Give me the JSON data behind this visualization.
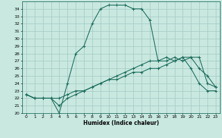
{
  "xlabel": "Humidex (Indice chaleur)",
  "xlim": [
    -0.5,
    23.5
  ],
  "ylim": [
    20,
    35
  ],
  "yticks": [
    20,
    21,
    22,
    23,
    24,
    25,
    26,
    27,
    28,
    29,
    30,
    31,
    32,
    33,
    34
  ],
  "xticks": [
    0,
    1,
    2,
    3,
    4,
    5,
    6,
    7,
    8,
    9,
    10,
    11,
    12,
    13,
    14,
    15,
    16,
    17,
    18,
    19,
    20,
    21,
    22,
    23
  ],
  "background_color": "#c8e8e0",
  "grid_color": "#a0c8be",
  "line_color": "#1a6b5a",
  "line1_x": [
    0,
    1,
    2,
    3,
    4,
    5,
    6,
    7,
    8,
    9,
    10,
    11,
    12,
    13,
    14,
    15,
    16,
    17,
    18,
    19,
    20,
    21,
    22,
    23
  ],
  "line1_y": [
    22.5,
    22,
    22,
    22,
    20,
    24,
    28,
    29,
    32,
    34,
    34.5,
    34.5,
    34.5,
    34,
    34,
    32.5,
    27,
    27.5,
    27,
    27.5,
    26,
    24,
    23,
    23
  ],
  "line2_x": [
    0,
    1,
    2,
    3,
    4,
    5,
    6,
    7,
    8,
    9,
    10,
    11,
    12,
    13,
    14,
    15,
    16,
    17,
    18,
    19,
    20,
    21,
    22,
    23
  ],
  "line2_y": [
    22.5,
    22,
    22,
    22,
    21,
    22,
    22.5,
    23,
    23.5,
    24,
    24.5,
    25,
    25.5,
    26,
    26.5,
    27,
    27,
    27,
    27.5,
    27,
    27.5,
    26,
    25,
    23.5
  ],
  "line3_x": [
    0,
    1,
    2,
    3,
    4,
    5,
    6,
    7,
    8,
    9,
    10,
    11,
    12,
    13,
    14,
    15,
    16,
    17,
    18,
    19,
    20,
    21,
    22,
    23
  ],
  "line3_y": [
    22.5,
    22,
    22,
    22,
    22,
    22.5,
    23,
    23,
    23.5,
    24,
    24.5,
    24.5,
    25,
    25.5,
    25.5,
    26,
    26,
    26.5,
    27,
    27.5,
    27.5,
    27.5,
    24,
    23.5
  ]
}
